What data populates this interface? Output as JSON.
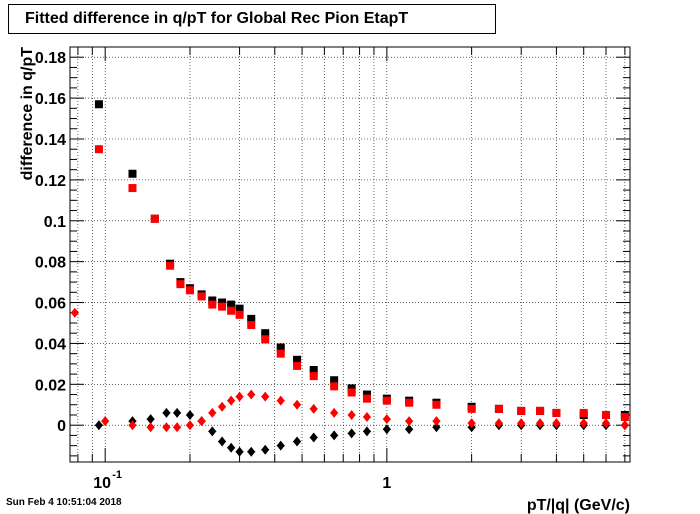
{
  "title": "Fitted difference in q/pT for Global Rec Pion EtapT",
  "footer": "Sun Feb  4 10:51:04 2018",
  "colors": {
    "series_black": "#000000",
    "series_red": "#ff0000",
    "grid": "#000000"
  },
  "chart_data": {
    "type": "scatter",
    "title": "Fitted difference in q/pT for Global Rec Pion EtapT",
    "xlabel": "pT/|q| (GeV/c)",
    "ylabel": "difference in q/pT",
    "x_scale": "log",
    "xlim": [
      0.075,
      7.3
    ],
    "ylim": [
      -0.018,
      0.185
    ],
    "grid": true,
    "x_ticks": [
      {
        "value": 0.1,
        "base": "10",
        "exp": "-1"
      },
      {
        "value": 1,
        "label": "1"
      }
    ],
    "y_ticks": [
      0,
      0.02,
      0.04,
      0.06,
      0.08,
      0.1,
      0.12,
      0.14,
      0.16,
      0.18
    ],
    "y_tick_labels": [
      "0",
      "0.02",
      "0.04",
      "0.06",
      "0.08",
      "0.1",
      "0.12",
      "0.14",
      "0.16",
      "0.18"
    ],
    "series": [
      {
        "color": "#000000",
        "marker": "square",
        "x": [
          0.095,
          0.125,
          0.15,
          0.17,
          0.185,
          0.2,
          0.22,
          0.24,
          0.26,
          0.28,
          0.3,
          0.33,
          0.37,
          0.42,
          0.48,
          0.55,
          0.65,
          0.75,
          0.85,
          1.0,
          1.2,
          1.5,
          2.0,
          2.5,
          3.0,
          3.5,
          4.0,
          5.0,
          6.0,
          7.0
        ],
        "y": [
          0.157,
          0.123,
          0.101,
          0.079,
          0.07,
          0.067,
          0.064,
          0.061,
          0.06,
          0.059,
          0.057,
          0.052,
          0.045,
          0.038,
          0.032,
          0.027,
          0.022,
          0.018,
          0.015,
          0.013,
          0.012,
          0.011,
          0.009,
          0.008,
          0.007,
          0.007,
          0.006,
          0.005,
          0.005,
          0.005
        ]
      },
      {
        "color": "#ff0000",
        "marker": "square",
        "x": [
          0.095,
          0.125,
          0.15,
          0.17,
          0.185,
          0.2,
          0.22,
          0.24,
          0.26,
          0.28,
          0.3,
          0.33,
          0.37,
          0.42,
          0.48,
          0.55,
          0.65,
          0.75,
          0.85,
          1.0,
          1.2,
          1.5,
          2.0,
          2.5,
          3.0,
          3.5,
          4.0,
          5.0,
          6.0,
          7.0
        ],
        "y": [
          0.135,
          0.116,
          0.101,
          0.078,
          0.069,
          0.066,
          0.063,
          0.059,
          0.058,
          0.056,
          0.054,
          0.049,
          0.042,
          0.035,
          0.029,
          0.024,
          0.019,
          0.016,
          0.013,
          0.012,
          0.011,
          0.01,
          0.008,
          0.008,
          0.007,
          0.007,
          0.006,
          0.006,
          0.005,
          0.004
        ]
      },
      {
        "color": "#000000",
        "marker": "diamond",
        "x": [
          0.095,
          0.125,
          0.145,
          0.165,
          0.18,
          0.2,
          0.22,
          0.24,
          0.26,
          0.28,
          0.3,
          0.33,
          0.37,
          0.42,
          0.48,
          0.55,
          0.65,
          0.75,
          0.85,
          1.0,
          1.2,
          1.5,
          2.0,
          2.5,
          3.0,
          3.5,
          4.0,
          5.0,
          6.0,
          7.0
        ],
        "y": [
          0.0,
          0.002,
          0.003,
          0.006,
          0.006,
          0.005,
          0.002,
          -0.003,
          -0.008,
          -0.011,
          -0.013,
          -0.013,
          -0.012,
          -0.01,
          -0.008,
          -0.006,
          -0.005,
          -0.004,
          -0.003,
          -0.002,
          -0.002,
          -0.001,
          -0.001,
          0.0,
          0.0,
          0.0,
          0.0,
          0.0,
          0.0,
          0.0
        ]
      },
      {
        "color": "#ff0000",
        "marker": "diamond",
        "x": [
          0.078,
          0.1,
          0.125,
          0.145,
          0.165,
          0.18,
          0.2,
          0.22,
          0.24,
          0.26,
          0.28,
          0.3,
          0.33,
          0.37,
          0.42,
          0.48,
          0.55,
          0.65,
          0.75,
          0.85,
          1.0,
          1.2,
          1.5,
          2.0,
          2.5,
          3.0,
          3.5,
          4.0,
          5.0,
          6.0,
          7.0
        ],
        "y": [
          0.055,
          0.002,
          0.0,
          -0.001,
          -0.001,
          -0.001,
          0.0,
          0.002,
          0.006,
          0.009,
          0.012,
          0.014,
          0.015,
          0.014,
          0.012,
          0.01,
          0.008,
          0.006,
          0.005,
          0.004,
          0.003,
          0.002,
          0.002,
          0.001,
          0.001,
          0.001,
          0.001,
          0.001,
          0.001,
          0.001,
          0.0
        ]
      }
    ]
  }
}
